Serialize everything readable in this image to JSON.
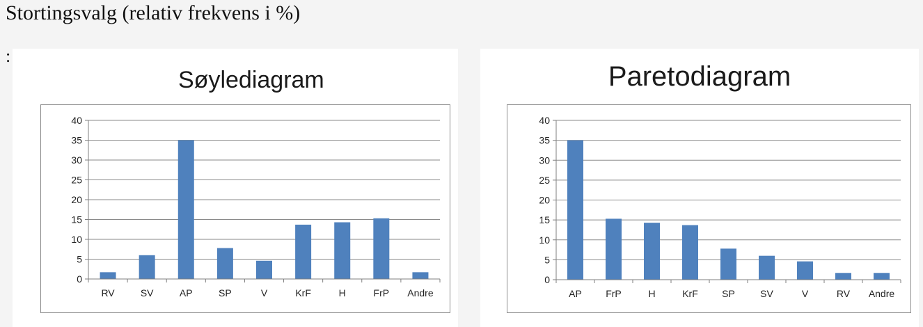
{
  "page": {
    "title": "Stortingsvalg (relativ frekvens i %)",
    "bullet": ":"
  },
  "colors": {
    "bar": "#4f81bd",
    "grid": "#8a8a8a",
    "axis": "#7f7f7f"
  },
  "chart_data": [
    {
      "type": "bar",
      "title": "Søylediagram",
      "categories": [
        "RV",
        "SV",
        "AP",
        "SP",
        "V",
        "KrF",
        "H",
        "FrP",
        "Andre"
      ],
      "values": [
        1.7,
        6.0,
        35.0,
        7.8,
        4.6,
        13.7,
        14.3,
        15.3,
        1.7
      ],
      "ylim": [
        0,
        40
      ],
      "yticks": [
        0,
        5,
        10,
        15,
        20,
        25,
        30,
        35,
        40
      ],
      "grid": true,
      "legend": "none"
    },
    {
      "type": "bar",
      "title": "Paretodiagram",
      "categories": [
        "AP",
        "FrP",
        "H",
        "KrF",
        "SP",
        "SV",
        "V",
        "RV",
        "Andre"
      ],
      "values": [
        35.0,
        15.3,
        14.3,
        13.7,
        7.8,
        6.0,
        4.6,
        1.7,
        1.7
      ],
      "ylim": [
        0,
        40
      ],
      "yticks": [
        0,
        5,
        10,
        15,
        20,
        25,
        30,
        35,
        40
      ],
      "grid": true,
      "legend": "none"
    }
  ]
}
